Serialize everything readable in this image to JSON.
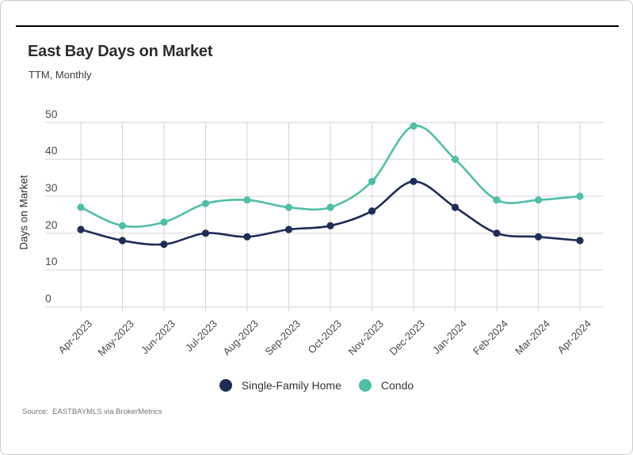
{
  "figure": {
    "title": "East Bay Days on Market",
    "subtitle": "TTM, Monthly",
    "source": "Source:  EASTBAYMLS via BrokerMetrics"
  },
  "chart_data": {
    "type": "line",
    "title": "East Bay Days on Market",
    "subtitle": "TTM, Monthly",
    "xlabel": "",
    "ylabel": "Days on Market",
    "ylim": [
      0,
      50
    ],
    "yticks": [
      0,
      10,
      20,
      30,
      40,
      50
    ],
    "grid": true,
    "legend_position": "bottom",
    "categories": [
      "Apr-2023",
      "May-2023",
      "Jun-2023",
      "Jul-2023",
      "Aug-2023",
      "Sep-2023",
      "Oct-2023",
      "Nov-2023",
      "Dec-2023",
      "Jan-2024",
      "Feb-2024",
      "Mar-2024",
      "Apr-2024"
    ],
    "series": [
      {
        "name": "Single-Family Home",
        "color": "#1f2c56",
        "values": [
          21,
          18,
          17,
          20,
          19,
          21,
          22,
          26,
          34,
          27,
          20,
          19,
          18
        ]
      },
      {
        "name": "Condo",
        "color": "#4fbfa6",
        "values": [
          27,
          22,
          23,
          28,
          29,
          27,
          27,
          34,
          49,
          40,
          29,
          29,
          30
        ]
      }
    ],
    "colors": {
      "gridline": "#d6d6d6",
      "tick_text": "#4c4c4c"
    }
  }
}
